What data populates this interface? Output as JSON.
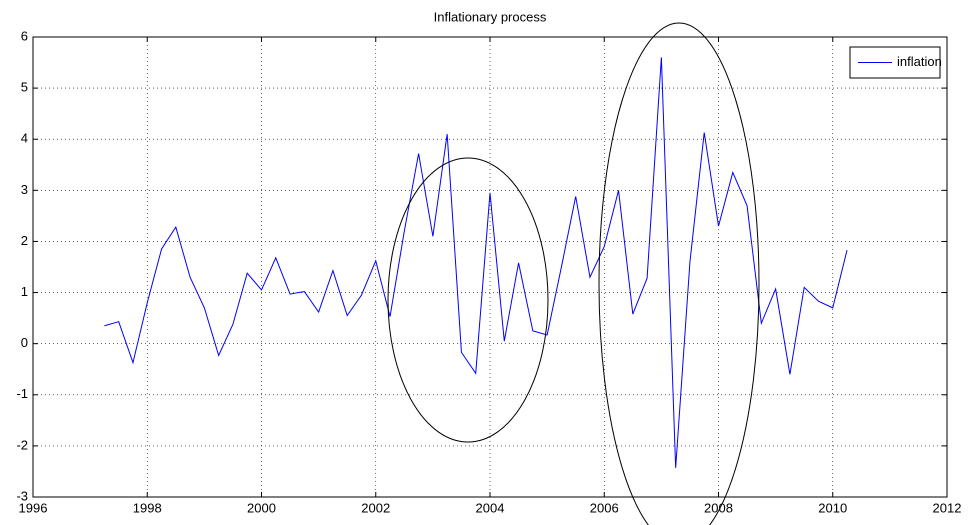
{
  "chart_data": {
    "type": "line",
    "title": "Inflationary process",
    "x": [
      1997.25,
      1997.5,
      1997.75,
      1998.0,
      1998.25,
      1998.5,
      1998.75,
      1999.0,
      1999.25,
      1999.5,
      1999.75,
      2000.0,
      2000.25,
      2000.5,
      2000.75,
      2001.0,
      2001.25,
      2001.5,
      2001.75,
      2002.0,
      2002.25,
      2002.5,
      2002.75,
      2003.0,
      2003.25,
      2003.5,
      2003.75,
      2004.0,
      2004.25,
      2004.5,
      2004.75,
      2005.0,
      2005.25,
      2005.5,
      2005.75,
      2006.0,
      2006.25,
      2006.5,
      2006.75,
      2007.0,
      2007.25,
      2007.5,
      2007.75,
      2008.0,
      2008.25,
      2008.5,
      2008.75,
      2009.0,
      2009.25,
      2009.5,
      2009.75,
      2010.0,
      2010.25
    ],
    "series": [
      {
        "name": "inflation",
        "color": "#0000ff",
        "values": [
          0.35,
          0.43,
          -0.37,
          0.8,
          1.85,
          2.28,
          1.3,
          0.7,
          -0.23,
          0.38,
          1.38,
          1.05,
          1.68,
          0.97,
          1.02,
          0.62,
          1.43,
          0.55,
          0.95,
          1.62,
          0.53,
          2.2,
          3.72,
          2.1,
          4.1,
          -0.17,
          -0.58,
          2.95,
          0.05,
          1.58,
          0.25,
          0.17,
          1.5,
          2.88,
          1.3,
          1.9,
          3.0,
          0.58,
          1.28,
          5.6,
          -2.43,
          1.6,
          4.13,
          2.3,
          3.35,
          2.7,
          0.4,
          1.07,
          -0.6,
          1.1,
          0.83,
          0.7,
          1.83
        ]
      }
    ],
    "xlim": [
      1996,
      2012
    ],
    "xticks": [
      1996,
      1998,
      2000,
      2002,
      2004,
      2006,
      2008,
      2010,
      2012
    ],
    "ylim": [
      -3,
      6
    ],
    "yticks": [
      -3,
      -2,
      -1,
      0,
      1,
      2,
      3,
      4,
      5,
      6
    ],
    "grid": true,
    "legend": "top-right"
  }
}
